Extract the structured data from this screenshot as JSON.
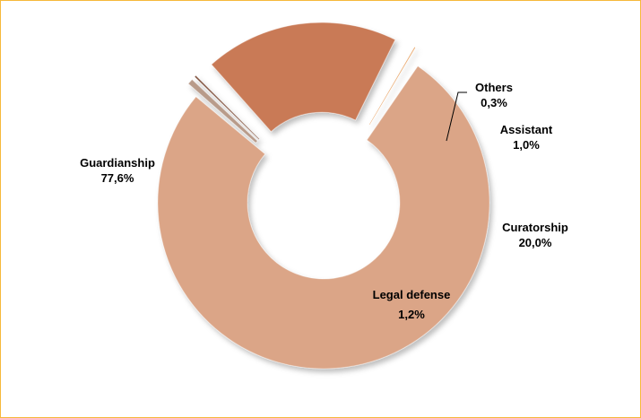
{
  "chart_data": {
    "type": "pie",
    "style": "exploded doughnut",
    "title": "",
    "slices": [
      {
        "label": "Guardianship",
        "value": 77.6,
        "value_text": "77,6%",
        "color": "#dba587"
      },
      {
        "label": "Others",
        "value": 0.3,
        "value_text": "0,3%",
        "color": "#b89b8a"
      },
      {
        "label": "Assistant",
        "value": 1.0,
        "value_text": "1,0%",
        "color": "#7a4a35"
      },
      {
        "label": "Curatorship",
        "value": 20.0,
        "value_text": "20,0%",
        "color": "#c97a57"
      },
      {
        "label": "Legal defense",
        "value": 1.2,
        "value_text": "1,2%",
        "color": "#e0832f"
      }
    ],
    "legend": "none",
    "data_labels": "outside"
  },
  "colors": {
    "frame_border": "#f6b93b",
    "background": "#ffffff",
    "label_text": "#000000"
  }
}
